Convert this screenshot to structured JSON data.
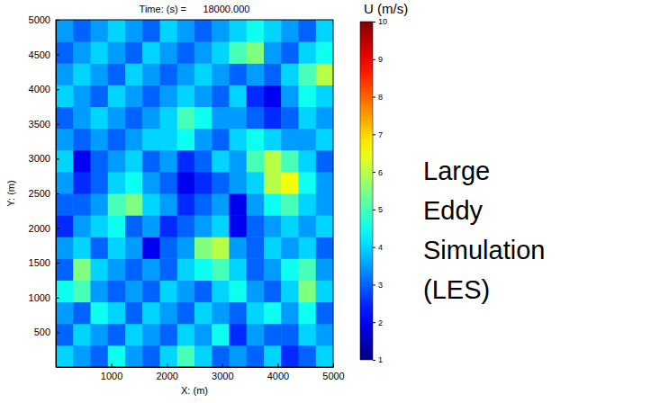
{
  "chart_data": {
    "type": "heatmap",
    "title": "Time: (s) =      18000.000",
    "x_label": "X: (m)",
    "y_label": "Y: (m)",
    "annotation": "Large Eddy Simulation (LES)",
    "color": "jet",
    "xlim": [
      0,
      5000
    ],
    "ylim": [
      0,
      5000
    ],
    "xticks": [
      1000,
      2000,
      3000,
      4000,
      5000
    ],
    "yticks": [
      500,
      1000,
      1500,
      2000,
      2500,
      3000,
      3500,
      4000,
      4500,
      5000
    ],
    "colorbar": {
      "label": "U (m/s)",
      "range": [
        1,
        10
      ],
      "ticks": [
        1,
        2,
        3,
        4,
        5,
        6,
        7,
        8,
        9,
        10
      ]
    },
    "x": [
      156.25,
      468.75,
      781.25,
      1093.75,
      1406.25,
      1718.75,
      2031.25,
      2343.75,
      2656.25,
      2968.75,
      3281.25,
      3593.75,
      3906.25,
      4218.75,
      4531.25,
      4843.75
    ],
    "y": [
      156.25,
      468.75,
      781.25,
      1093.75,
      1406.25,
      1718.75,
      2031.25,
      2343.75,
      2656.25,
      2968.75,
      3281.25,
      3593.75,
      3906.25,
      4218.75,
      4531.25,
      4843.75
    ],
    "z": [
      [
        4,
        3.5,
        3,
        4.5,
        3.5,
        3,
        4,
        5,
        4,
        3,
        3.5,
        3,
        4,
        2.5,
        3,
        4
      ],
      [
        3,
        4,
        3.5,
        3,
        4,
        3.5,
        3,
        4,
        3.5,
        4.5,
        2.5,
        3.5,
        3,
        3,
        4,
        3.5
      ],
      [
        3.5,
        3,
        4.5,
        4,
        3,
        4,
        3.5,
        3,
        4,
        3.5,
        3,
        4,
        4.5,
        3.5,
        4.5,
        3
      ],
      [
        4.5,
        5,
        3.5,
        3,
        3.5,
        3,
        4,
        3.5,
        3,
        4,
        4.5,
        3.5,
        3,
        4,
        5.5,
        4
      ],
      [
        3,
        5.5,
        4,
        3.5,
        3,
        3.5,
        3,
        4,
        4.5,
        5,
        4,
        3,
        3.5,
        4.5,
        5,
        3.5
      ],
      [
        3.5,
        4,
        3,
        4,
        3.5,
        2,
        3,
        3.5,
        5.5,
        6,
        3.5,
        3,
        4,
        3.5,
        4,
        3
      ],
      [
        2.5,
        3.5,
        4,
        4.5,
        3,
        3.5,
        2.5,
        3,
        3.5,
        4,
        2,
        3,
        3.5,
        4,
        3.5,
        4
      ],
      [
        3,
        3,
        3.5,
        5,
        5.5,
        4,
        3.5,
        2.5,
        3,
        3.5,
        2,
        3.5,
        4.5,
        5,
        4,
        3.5
      ],
      [
        3.5,
        2.5,
        3,
        4,
        4.5,
        3.5,
        3,
        2,
        2.5,
        3,
        3.5,
        4,
        6,
        6.5,
        4.5,
        3.5
      ],
      [
        4,
        2,
        3,
        3.5,
        4,
        3,
        3.5,
        2.5,
        3,
        4,
        3.5,
        5,
        6,
        5,
        4,
        3
      ],
      [
        3.5,
        3,
        3.5,
        3,
        3.5,
        4,
        4,
        4.5,
        3.5,
        3,
        4,
        4.5,
        4,
        3.5,
        3.5,
        4
      ],
      [
        3,
        3.5,
        4,
        3.5,
        3,
        3.5,
        4,
        5,
        4.5,
        3.5,
        3.5,
        3,
        2.5,
        3,
        4,
        3.5
      ],
      [
        4,
        3.5,
        3,
        4,
        3.5,
        3,
        3.5,
        4,
        3.5,
        3,
        4,
        2.5,
        2,
        3.5,
        4.5,
        4
      ],
      [
        3.5,
        4,
        3.5,
        3,
        4,
        3.5,
        3,
        3.5,
        4,
        3.5,
        3,
        3.5,
        3,
        4,
        5,
        6
      ],
      [
        3,
        3.5,
        4,
        3.5,
        3,
        4,
        3.5,
        3,
        3.5,
        4,
        5,
        5.5,
        3.5,
        3,
        4,
        4.5
      ],
      [
        3.5,
        3,
        3.5,
        4,
        3.5,
        3,
        4,
        3.5,
        3,
        3.5,
        4,
        4.5,
        4,
        3.5,
        3,
        4
      ]
    ]
  }
}
